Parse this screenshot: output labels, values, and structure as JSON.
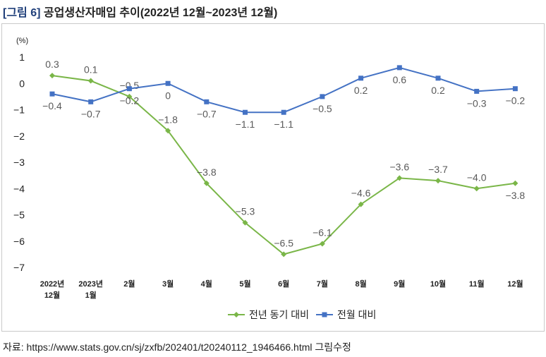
{
  "figure": {
    "tag": "[그림 6]",
    "title": "공업생산자매입 추이(2022년 12월~2023년 12월)"
  },
  "source": "자료: https://www.stats.gov.cn/sj/zxfb/202401/t20240112_1946466.html 그림수정",
  "colors": {
    "yoy": "#7ab648",
    "mom": "#4472c4",
    "axis_text": "#222222",
    "label_text": "#595959"
  },
  "chart_data": {
    "type": "line",
    "unit_label": "(%)",
    "categories": [
      [
        "2022년",
        "12월"
      ],
      [
        "2023년",
        "1월"
      ],
      [
        "2월"
      ],
      [
        "3월"
      ],
      [
        "4월"
      ],
      [
        "5월"
      ],
      [
        "6월"
      ],
      [
        "7월"
      ],
      [
        "8월"
      ],
      [
        "9월"
      ],
      [
        "10월"
      ],
      [
        "11월"
      ],
      [
        "12월"
      ]
    ],
    "ylim": [
      -7,
      1
    ],
    "yticks": [
      1,
      0,
      -1,
      -2,
      -3,
      -4,
      -5,
      -6,
      -7
    ],
    "grid": false,
    "legend_position": "bottom",
    "series": [
      {
        "name": "전년 동기 대비",
        "marker": "diamond",
        "values": [
          0.3,
          0.1,
          -0.5,
          -1.8,
          -3.8,
          -5.3,
          -6.5,
          -6.1,
          -4.6,
          -3.6,
          -3.7,
          -4.0,
          -3.8
        ],
        "labels": [
          "0.3",
          "0.1",
          "-0.5",
          "-1.8",
          "-3.8",
          "-5.3",
          "-6.5",
          "-6.1",
          "-4.6",
          "-3.6",
          "-3.7",
          "-4.0",
          "-3.8"
        ],
        "label_side": [
          "above",
          "above",
          "above",
          "above",
          "above",
          "above",
          "above",
          "above",
          "above",
          "above",
          "above",
          "above",
          "below"
        ]
      },
      {
        "name": "전월 대비",
        "marker": "square",
        "values": [
          -0.4,
          -0.7,
          -0.2,
          0,
          -0.7,
          -1.1,
          -1.1,
          -0.5,
          0.2,
          0.6,
          0.2,
          -0.3,
          -0.2
        ],
        "labels": [
          "-0.4",
          "-0.7",
          "-0.2",
          "0",
          "-0.7",
          "-1.1",
          "-1.1",
          "-0.5",
          "0.2",
          "0.6",
          "0.2",
          "-0.3",
          "-0.2"
        ],
        "label_side": [
          "below",
          "below",
          "below",
          "below",
          "below",
          "below",
          "below",
          "below",
          "below",
          "below",
          "below",
          "below",
          "below"
        ]
      }
    ]
  }
}
